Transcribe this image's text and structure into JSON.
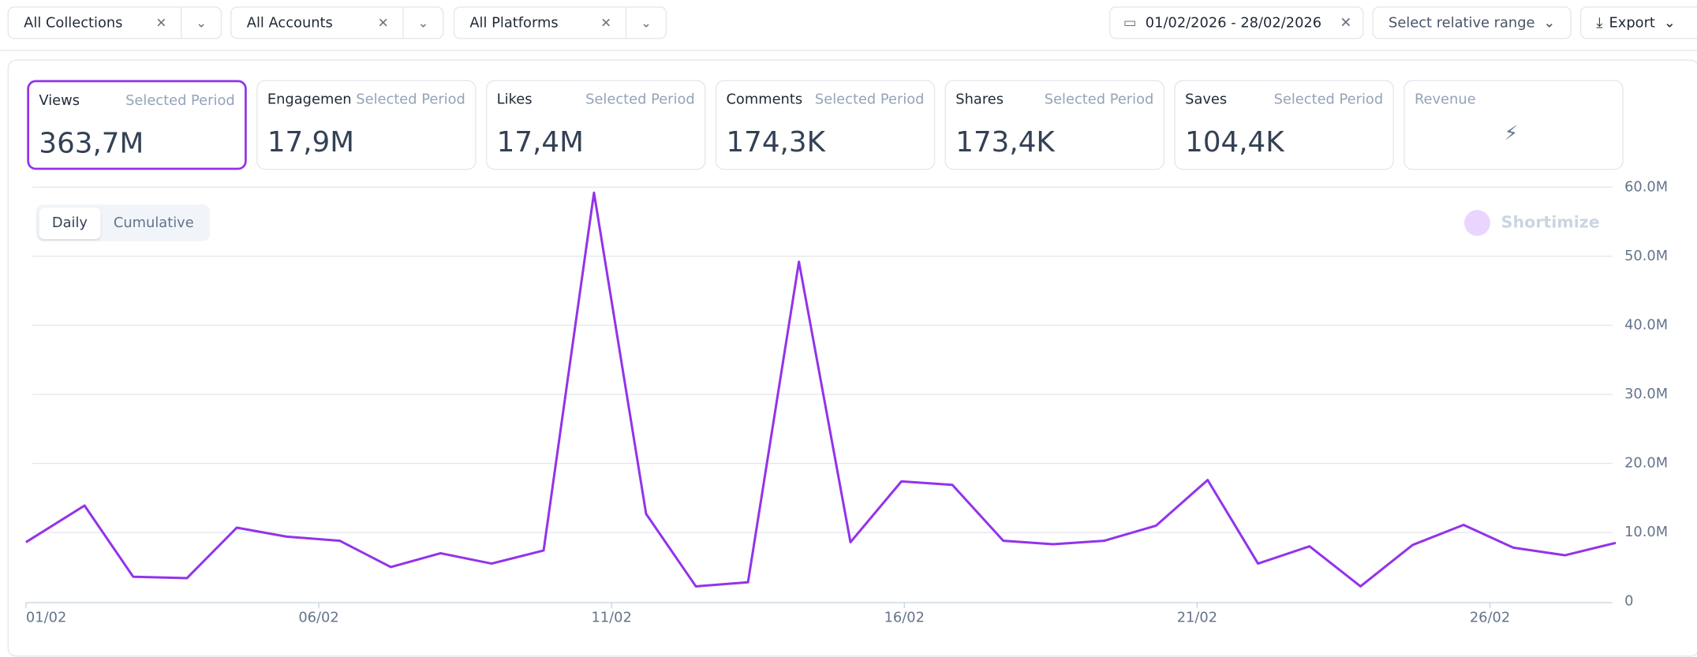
{
  "filters": [
    {
      "label": "All Collections"
    },
    {
      "label": "All Accounts"
    },
    {
      "label": "All Platforms"
    }
  ],
  "date_range": "01/02/2026 - 28/02/2026",
  "relative_range": "Select relative range",
  "export": "Export",
  "metrics": [
    {
      "name": "Views",
      "period": "Selected Period",
      "value": "363,7M"
    },
    {
      "name": "Engagement",
      "period": "Selected Period",
      "value": "17,9M"
    },
    {
      "name": "Likes",
      "period": "Selected Period",
      "value": "17,4M"
    },
    {
      "name": "Comments",
      "period": "Selected Period",
      "value": "174,3K"
    },
    {
      "name": "Shares",
      "period": "Selected Period",
      "value": "173,4K"
    },
    {
      "name": "Saves",
      "period": "Selected Period",
      "value": "104,4K"
    }
  ],
  "revenue": {
    "name": "Revenue"
  },
  "toggle": [
    "Daily",
    "Cumulative"
  ],
  "watermark": "Shortimize",
  "chart_data": {
    "type": "line",
    "grid": true,
    "x": [
      0,
      1.0,
      1.83,
      2.75,
      3.6,
      4.45,
      5.36,
      6.23,
      7.08,
      7.95,
      8.84,
      9.7,
      10.59,
      11.44,
      12.33,
      13.2,
      14.08,
      14.95,
      15.82,
      16.69,
      17.54,
      18.41,
      19.3,
      20.18,
      21.04,
      21.92,
      22.79,
      23.68,
      24.55,
      25.4,
      26.28,
      27.15
    ],
    "series": [
      {
        "name": "Views",
        "color": "#9333ea",
        "values": [
          8600000,
          13900000,
          3600000,
          3400000,
          10700000,
          9400000,
          8800000,
          5000000,
          7000000,
          5500000,
          7400000,
          59200000,
          12700000,
          2200000,
          2800000,
          49200000,
          8600000,
          17400000,
          16900000,
          8800000,
          8300000,
          8800000,
          11000000,
          17600000,
          5500000,
          8000000,
          2200000,
          8200000,
          11100000,
          7800000,
          6700000,
          8500000
        ]
      }
    ],
    "xlim": [
      0,
      27.15
    ],
    "xticks": [
      {
        "value": 0,
        "label": "01/02"
      },
      {
        "value": 5,
        "label": "06/02"
      },
      {
        "value": 10,
        "label": "11/02"
      },
      {
        "value": 15,
        "label": "16/02"
      },
      {
        "value": 20,
        "label": "21/02"
      },
      {
        "value": 25,
        "label": "26/02"
      }
    ],
    "ylim": [
      0,
      60000000
    ],
    "yticks": [
      0,
      {
        "value": 10000000,
        "label": "10.0M"
      },
      {
        "value": 20000000,
        "label": "20.0M"
      },
      {
        "value": 30000000,
        "label": "30.0M"
      },
      {
        "value": 40000000,
        "label": "40.0M"
      },
      {
        "value": 50000000,
        "label": "50.0M"
      },
      {
        "value": 60000000,
        "label": "60.0M"
      }
    ]
  }
}
